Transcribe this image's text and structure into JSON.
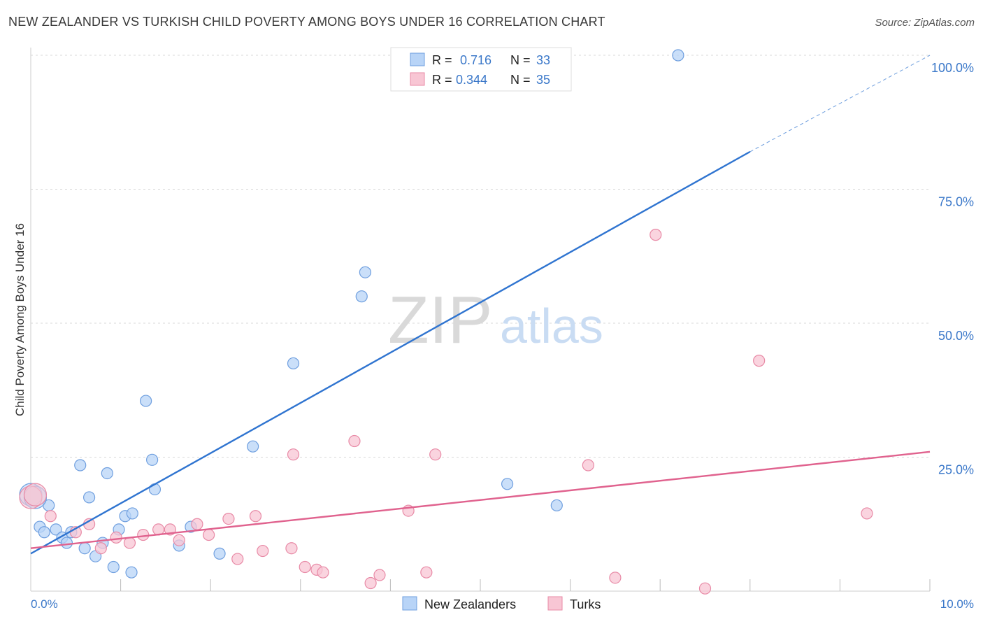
{
  "header": {
    "title": "NEW ZEALANDER VS TURKISH CHILD POVERTY AMONG BOYS UNDER 16 CORRELATION CHART",
    "source": "Source: ZipAtlas.com"
  },
  "watermark": {
    "zip": "ZIP",
    "atlas": "atlas"
  },
  "legend_box": {
    "rows": [
      {
        "r_label": "R =",
        "r_value": "0.716",
        "n_label": "N =",
        "n_value": "33"
      },
      {
        "r_label": "R =",
        "r_value": "0.344",
        "n_label": "N =",
        "n_value": "35"
      }
    ]
  },
  "bottom_legend": {
    "items": [
      "New Zealanders",
      "Turks"
    ]
  },
  "colors": {
    "nz_fill": "#b8d4f7",
    "nz_stroke": "#6f9fdf",
    "nz_line": "#2f74d0",
    "tk_fill": "#f8c6d4",
    "tk_stroke": "#e88aa6",
    "tk_line": "#e0628e",
    "value_blue": "#3b78c9",
    "grid": "#d8d8d8"
  },
  "chart_data": {
    "type": "scatter",
    "xlabel": "",
    "ylabel": "Child Poverty Among Boys Under 16",
    "xlim": [
      0,
      10
    ],
    "ylim": [
      0,
      100
    ],
    "x_tick_labels": [
      "0.0%",
      "10.0%"
    ],
    "y_tick_labels": [
      "25.0%",
      "50.0%",
      "75.0%",
      "100.0%"
    ],
    "y_tick_values": [
      25,
      50,
      75,
      100
    ],
    "grid": true,
    "legend_position": "top-center",
    "series": [
      {
        "name": "New Zealanders",
        "R": 0.716,
        "N": 33,
        "points": [
          [
            0.0,
            18.0
          ],
          [
            0.1,
            12.0
          ],
          [
            0.15,
            11.0
          ],
          [
            0.2,
            16.0
          ],
          [
            0.28,
            11.5
          ],
          [
            0.35,
            10.0
          ],
          [
            0.4,
            9.0
          ],
          [
            0.45,
            11.0
          ],
          [
            0.55,
            23.5
          ],
          [
            0.6,
            8.0
          ],
          [
            0.65,
            17.5
          ],
          [
            0.72,
            6.5
          ],
          [
            0.8,
            9.0
          ],
          [
            0.85,
            22.0
          ],
          [
            0.92,
            4.5
          ],
          [
            0.98,
            11.5
          ],
          [
            1.05,
            14.0
          ],
          [
            1.12,
            3.5
          ],
          [
            1.13,
            14.5
          ],
          [
            1.28,
            35.5
          ],
          [
            1.35,
            24.5
          ],
          [
            1.38,
            19.0
          ],
          [
            1.65,
            8.5
          ],
          [
            1.78,
            12.0
          ],
          [
            2.1,
            7.0
          ],
          [
            2.47,
            27.0
          ],
          [
            2.92,
            42.5
          ],
          [
            3.68,
            55.0
          ],
          [
            3.72,
            59.5
          ],
          [
            5.3,
            20.0
          ],
          [
            5.85,
            16.0
          ],
          [
            7.2,
            100.0
          ],
          [
            0.05,
            17.5
          ]
        ],
        "trend": {
          "x0": 0.0,
          "y0": 7.0,
          "x1": 8.0,
          "y1": 82.0,
          "dashed_to_x": 10.0,
          "dashed_to_y": 100.0
        }
      },
      {
        "name": "Turks",
        "R": 0.344,
        "N": 35,
        "points": [
          [
            0.0,
            17.5
          ],
          [
            0.22,
            14.0
          ],
          [
            0.5,
            11.0
          ],
          [
            0.65,
            12.5
          ],
          [
            0.78,
            8.0
          ],
          [
            0.95,
            10.0
          ],
          [
            1.1,
            9.0
          ],
          [
            1.25,
            10.5
          ],
          [
            1.42,
            11.5
          ],
          [
            1.55,
            11.5
          ],
          [
            1.65,
            9.5
          ],
          [
            1.85,
            12.5
          ],
          [
            1.98,
            10.5
          ],
          [
            2.2,
            13.5
          ],
          [
            2.3,
            6.0
          ],
          [
            2.5,
            14.0
          ],
          [
            2.58,
            7.5
          ],
          [
            2.9,
            8.0
          ],
          [
            2.92,
            25.5
          ],
          [
            3.05,
            4.5
          ],
          [
            3.18,
            4.0
          ],
          [
            3.25,
            3.5
          ],
          [
            3.6,
            28.0
          ],
          [
            3.78,
            1.5
          ],
          [
            3.88,
            3.0
          ],
          [
            4.2,
            15.0
          ],
          [
            4.4,
            3.5
          ],
          [
            4.5,
            25.5
          ],
          [
            6.2,
            23.5
          ],
          [
            6.5,
            2.5
          ],
          [
            6.95,
            66.5
          ],
          [
            7.5,
            0.5
          ],
          [
            8.1,
            43.0
          ],
          [
            9.3,
            14.5
          ],
          [
            0.05,
            18.0
          ]
        ],
        "trend": {
          "x0": 0.0,
          "y0": 8.0,
          "x1": 10.0,
          "y1": 26.0
        }
      }
    ]
  }
}
